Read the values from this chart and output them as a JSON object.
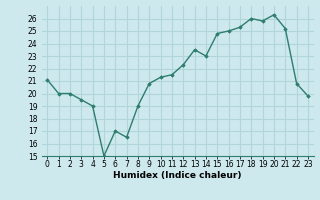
{
  "x": [
    0,
    1,
    2,
    3,
    4,
    5,
    6,
    7,
    8,
    9,
    10,
    11,
    12,
    13,
    14,
    15,
    16,
    17,
    18,
    19,
    20,
    21,
    22,
    23
  ],
  "y": [
    21.1,
    20.0,
    20.0,
    19.5,
    19.0,
    15.0,
    17.0,
    16.5,
    19.0,
    20.8,
    21.3,
    21.5,
    22.3,
    23.5,
    23.0,
    24.8,
    25.0,
    25.3,
    26.0,
    25.8,
    26.3,
    25.2,
    20.8,
    19.8
  ],
  "xlabel": "Humidex (Indice chaleur)",
  "ylim": [
    15,
    27
  ],
  "yticks": [
    15,
    16,
    17,
    18,
    19,
    20,
    21,
    22,
    23,
    24,
    25,
    26
  ],
  "xticks": [
    0,
    1,
    2,
    3,
    4,
    5,
    6,
    7,
    8,
    9,
    10,
    11,
    12,
    13,
    14,
    15,
    16,
    17,
    18,
    19,
    20,
    21,
    22,
    23
  ],
  "line_color": "#2e7d6e",
  "bg_color": "#cde9ed",
  "grid_color": "#b0d5da",
  "marker": "D",
  "marker_size": 1.8,
  "line_width": 1.0,
  "tick_fontsize": 5.5,
  "xlabel_fontsize": 6.5
}
